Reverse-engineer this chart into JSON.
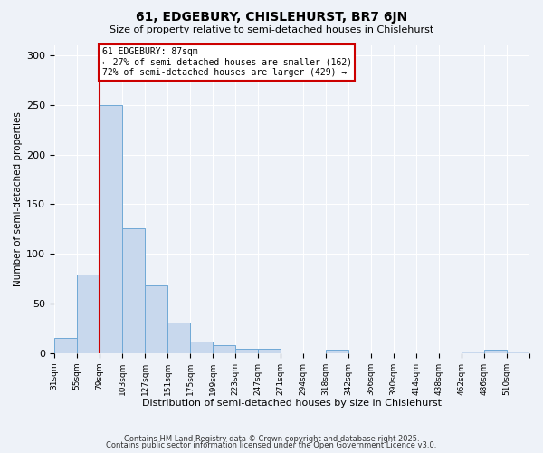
{
  "title": "61, EDGEBURY, CHISLEHURST, BR7 6JN",
  "subtitle": "Size of property relative to semi-detached houses in Chislehurst",
  "xlabel": "Distribution of semi-detached houses by size in Chislehurst",
  "ylabel": "Number of semi-detached properties",
  "bar_values": [
    15,
    79,
    250,
    126,
    68,
    31,
    12,
    8,
    4,
    4,
    0,
    0,
    3,
    0,
    0,
    0,
    0,
    0,
    2,
    3,
    2
  ],
  "bin_labels": [
    "31sqm",
    "55sqm",
    "79sqm",
    "103sqm",
    "127sqm",
    "151sqm",
    "175sqm",
    "199sqm",
    "223sqm",
    "247sqm",
    "271sqm",
    "294sqm",
    "318sqm",
    "342sqm",
    "366sqm",
    "390sqm",
    "414sqm",
    "438sqm",
    "462sqm",
    "486sqm",
    "510sqm"
  ],
  "bar_color": "#c8d8ed",
  "bar_edge_color": "#6fa8d6",
  "vline_color": "#cc0000",
  "vline_x": 2.0,
  "pct_smaller": 27,
  "pct_larger": 72,
  "count_smaller": 162,
  "count_larger": 429,
  "annotation_box_color": "#ffffff",
  "annotation_box_edge": "#cc0000",
  "ylim": [
    0,
    310
  ],
  "yticks": [
    0,
    50,
    100,
    150,
    200,
    250,
    300
  ],
  "footer1": "Contains HM Land Registry data © Crown copyright and database right 2025.",
  "footer2": "Contains public sector information licensed under the Open Government Licence v3.0.",
  "background_color": "#eef2f8",
  "grid_color": "#ffffff"
}
